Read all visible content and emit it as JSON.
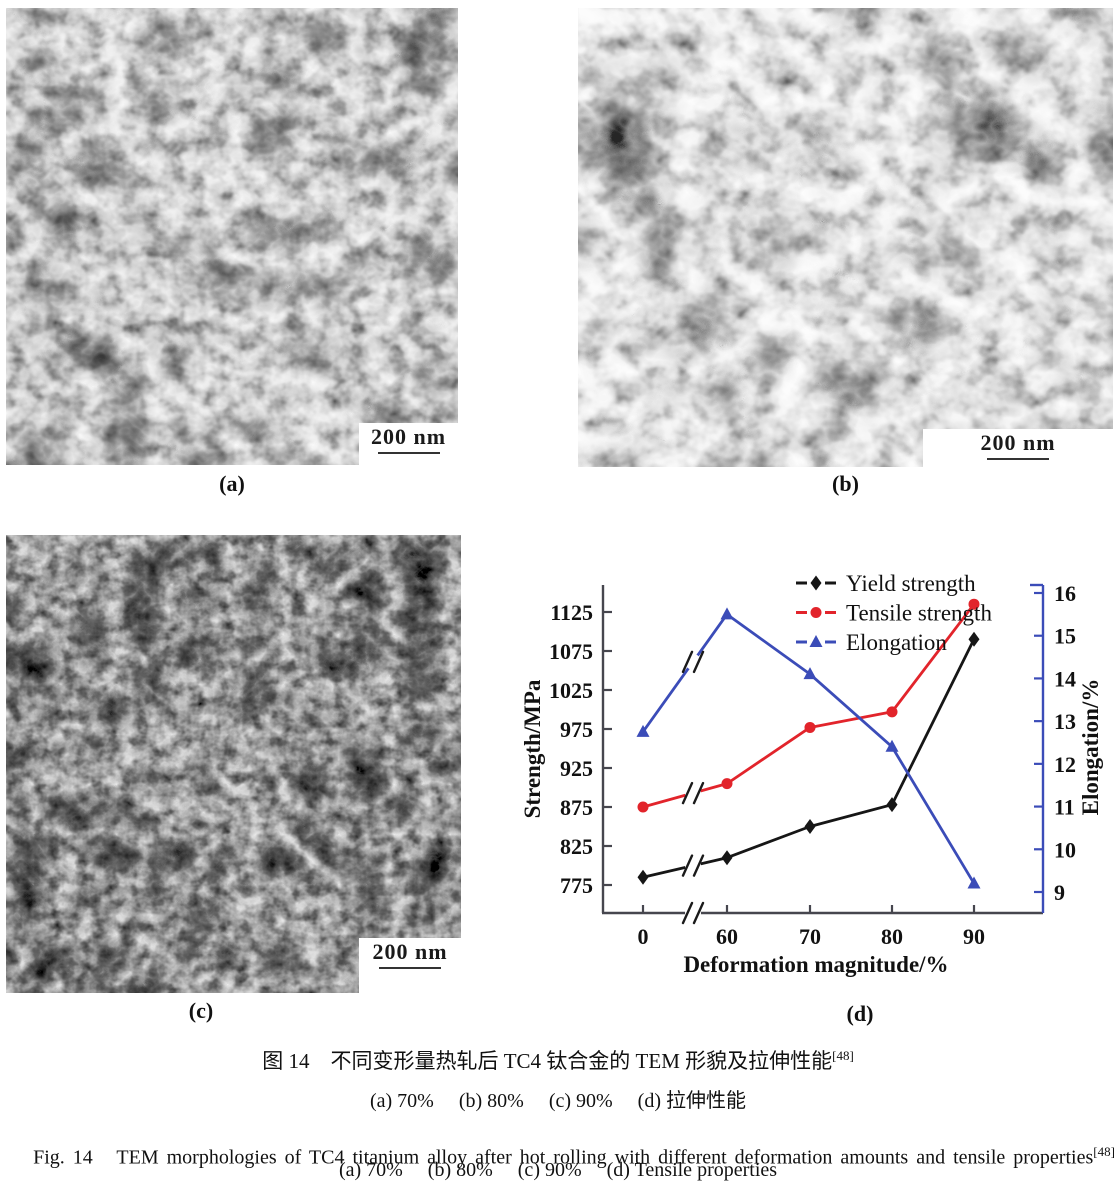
{
  "figure": {
    "panels": [
      {
        "id": "a",
        "label": "(a)",
        "scale_bar": "200 nm"
      },
      {
        "id": "b",
        "label": "(b)",
        "scale_bar": "200 nm"
      },
      {
        "id": "c",
        "label": "(c)",
        "scale_bar": "200 nm"
      },
      {
        "id": "d",
        "label": "(d)"
      }
    ],
    "caption": {
      "zh_title": "图 14　不同变形量热轧后 TC4 钛合金的 TEM 形貌及拉伸性能",
      "zh_ref": "[48]",
      "zh_sub": "(a) 70%     (b) 80%     (c) 90%     (d) 拉伸性能",
      "en_title": "Fig. 14   TEM morphologies of TC4 titanium alloy after hot rolling with different deformation amounts and tensile properties",
      "en_ref": "[48]",
      "en_sub": "(a) 70%     (b) 80%     (c) 90%     (d) Tensile properties"
    }
  },
  "chart_data": {
    "type": "line",
    "title": "",
    "xlabel": "Deformation magnitude/%",
    "ylabel_left": "Strength/MPa",
    "ylabel_right": "Elongation/%",
    "categories": [
      "0",
      "60",
      "70",
      "80",
      "90"
    ],
    "x_axis_break_between": [
      "0",
      "60"
    ],
    "left_axis": {
      "label": "Strength/MPa",
      "ticks": [
        775,
        825,
        875,
        925,
        975,
        1025,
        1075,
        1125
      ],
      "range": [
        750,
        1160
      ]
    },
    "right_axis": {
      "label": "Elongation/%",
      "ticks": [
        9,
        10,
        11,
        12,
        13,
        14,
        15,
        16
      ],
      "range": [
        8.5,
        16.2
      ]
    },
    "series": [
      {
        "name": "Yield strength",
        "axis": "left",
        "color": "#161616",
        "marker": "diamond",
        "values": [
          785,
          810,
          850,
          878,
          1090
        ]
      },
      {
        "name": "Tensile strength",
        "axis": "left",
        "color": "#e2242b",
        "marker": "circle",
        "values": [
          875,
          905,
          977,
          997,
          1135
        ]
      },
      {
        "name": "Elongation",
        "axis": "right",
        "color": "#3b4cb8",
        "marker": "triangle",
        "values": [
          12.75,
          15.5,
          14.1,
          12.4,
          9.2
        ]
      }
    ],
    "legend_position": "top-inside",
    "grid": false,
    "axis_colors": {
      "left": "#46464e",
      "bottom": "#46464e",
      "right": "#3b4cb8"
    }
  }
}
